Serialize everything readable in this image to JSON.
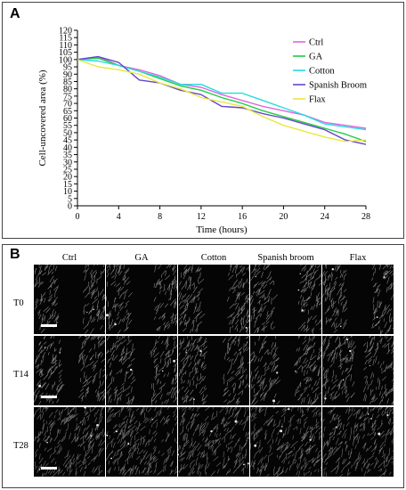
{
  "panelA": {
    "label": "A",
    "chart_data": {
      "type": "line",
      "xlabel": "Time (hours)",
      "ylabel": "Cell-uncovered area (%)",
      "xlim": [
        0,
        28
      ],
      "ylim": [
        0,
        120
      ],
      "xticks": [
        0,
        4,
        8,
        12,
        16,
        20,
        24,
        28
      ],
      "yticks": [
        0,
        5,
        10,
        15,
        20,
        25,
        30,
        35,
        40,
        45,
        50,
        55,
        60,
        65,
        70,
        75,
        80,
        85,
        90,
        95,
        100,
        105,
        110,
        115,
        120
      ],
      "grid": false,
      "legend": "top-right",
      "series": [
        {
          "name": "Ctrl",
          "color": "#e066e0",
          "x": [
            0,
            2,
            4,
            6,
            8,
            10,
            12,
            14,
            16,
            18,
            20,
            22,
            24,
            26,
            28
          ],
          "y": [
            100,
            102,
            96,
            93,
            89,
            83,
            81,
            76,
            72,
            68,
            65,
            62,
            57,
            55,
            53
          ]
        },
        {
          "name": "GA",
          "color": "#22cc44",
          "x": [
            0,
            2,
            4,
            6,
            8,
            10,
            12,
            14,
            16,
            18,
            20,
            22,
            24,
            26,
            28
          ],
          "y": [
            100,
            101,
            96,
            92,
            87,
            82,
            79,
            74,
            70,
            65,
            61,
            57,
            53,
            49,
            44
          ]
        },
        {
          "name": "Cotton",
          "color": "#22dddd",
          "x": [
            0,
            2,
            4,
            6,
            8,
            10,
            12,
            14,
            16,
            18,
            20,
            22,
            24,
            26,
            28
          ],
          "y": [
            100,
            99,
            96,
            92,
            88,
            83,
            83,
            77,
            77,
            72,
            67,
            62,
            56,
            54,
            52
          ]
        },
        {
          "name": "Spanish Broom",
          "color": "#6644cc",
          "x": [
            0,
            2,
            4,
            6,
            8,
            10,
            12,
            14,
            16,
            18,
            20,
            22,
            24,
            26,
            28
          ],
          "y": [
            100,
            102,
            98,
            86,
            84,
            79,
            76,
            68,
            67,
            63,
            60,
            56,
            52,
            45,
            42
          ]
        },
        {
          "name": "Flax",
          "color": "#e8e840",
          "x": [
            0,
            2,
            4,
            6,
            8,
            10,
            12,
            14,
            16,
            18,
            20,
            22,
            24,
            26,
            28
          ],
          "y": [
            100,
            95,
            93,
            90,
            84,
            80,
            74,
            71,
            68,
            61,
            55,
            51,
            47,
            44,
            45
          ]
        }
      ]
    }
  },
  "panelB": {
    "label": "B",
    "columns": [
      "Ctrl",
      "GA",
      "Cotton",
      "Spanish broom",
      "Flax"
    ],
    "rows": [
      "T0",
      "T14",
      "T28"
    ],
    "gaps": [
      [
        30,
        28,
        30,
        28,
        30
      ],
      [
        20,
        19,
        20,
        18,
        12
      ],
      [
        0,
        0,
        0,
        0,
        0
      ]
    ]
  }
}
